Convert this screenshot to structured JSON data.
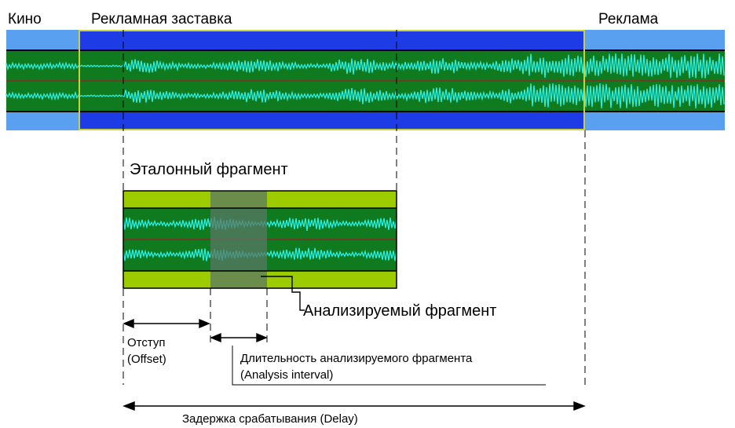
{
  "labels": {
    "kino": "Кино",
    "intro": "Рекламная заставка",
    "ad": "Реклама",
    "reference_fragment": "Эталонный фрагмент",
    "analyzed_fragment": "Анализируемый фрагмент",
    "offset_ru": "Отступ",
    "offset_en": "(Offset)",
    "interval_ru": "Длительность анализируемого фрагмента",
    "interval_en": "(Analysis interval)",
    "delay": "Задержка срабатывания (Delay)"
  },
  "colors": {
    "track_bg": "#5aa0f0",
    "intro_bg": "#1e3ce6",
    "wave_bg": "#0f7a1e",
    "wave": "#28f0e6",
    "frame": "#c8d23c",
    "ref_bar": "#9ccc00",
    "analyzed": "#5a7866",
    "divider": "#8a2a2a"
  }
}
